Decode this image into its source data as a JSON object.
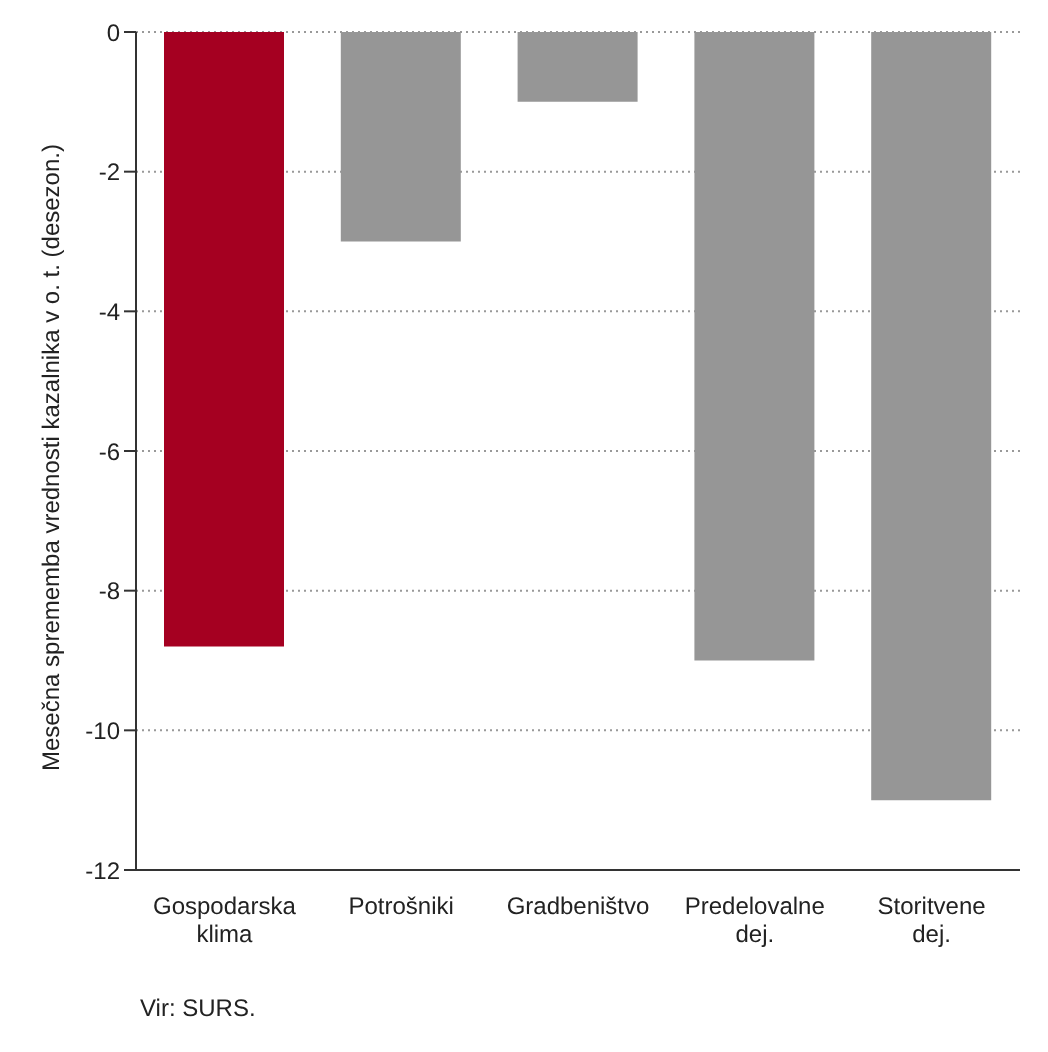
{
  "chart_data": {
    "type": "bar",
    "ylabel": "Mesečna sprememba vrednosti kazalnika  v o. t. (desezon.)",
    "categories": [
      "Gospodarska klima",
      "Potrošniki",
      "Gradbeništvo",
      "Predelovalne dej.",
      "Storitvene dej."
    ],
    "values": [
      -8.8,
      -3,
      -1,
      -9,
      -11
    ],
    "colors": [
      "#a50021",
      "#969696",
      "#969696",
      "#969696",
      "#969696"
    ],
    "ylim": [
      -12,
      0
    ],
    "yticks": [
      -12,
      -10,
      -8,
      -6,
      -4,
      -2,
      0
    ],
    "grid": "y",
    "annotations": [
      "Vir: SURS."
    ]
  }
}
